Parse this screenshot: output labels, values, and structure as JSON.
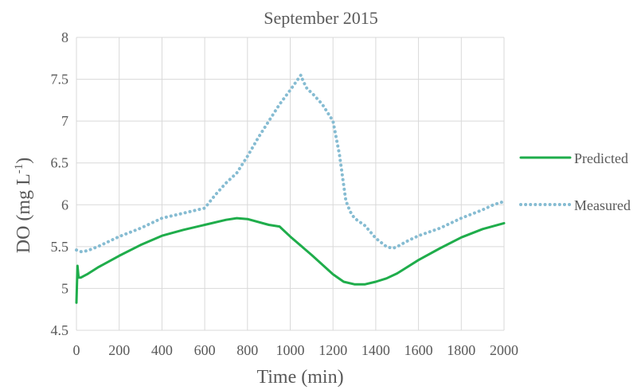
{
  "chart_data": {
    "type": "line",
    "title": "September 2015",
    "xlabel": "Time (min)",
    "ylabel_main": "DO (mg L",
    "ylabel_sup": "-1",
    "ylabel_close": ")",
    "xlim": [
      0,
      2000
    ],
    "ylim": [
      4.5,
      8
    ],
    "xticks": [
      0,
      200,
      400,
      600,
      800,
      1000,
      1200,
      1400,
      1600,
      1800,
      2000
    ],
    "yticks": [
      "4.5",
      "5",
      "5.5",
      "6",
      "6.5",
      "7",
      "7.5",
      "8"
    ],
    "grid": true,
    "legend_position": "right",
    "series": [
      {
        "name": "Predicted",
        "color": "#1fad4b",
        "style": "solid",
        "x": [
          0,
          5,
          10,
          20,
          50,
          100,
          200,
          300,
          400,
          500,
          600,
          700,
          750,
          800,
          900,
          950,
          1000,
          1100,
          1200,
          1250,
          1300,
          1350,
          1400,
          1450,
          1500,
          1600,
          1700,
          1800,
          1900,
          2000
        ],
        "y": [
          4.83,
          5.27,
          5.13,
          5.13,
          5.17,
          5.25,
          5.39,
          5.52,
          5.63,
          5.7,
          5.76,
          5.82,
          5.84,
          5.83,
          5.76,
          5.74,
          5.62,
          5.4,
          5.17,
          5.08,
          5.05,
          5.05,
          5.08,
          5.12,
          5.18,
          5.34,
          5.48,
          5.61,
          5.71,
          5.78
        ]
      },
      {
        "name": "Measured",
        "color": "#86bcd2",
        "style": "dotted",
        "x": [
          0,
          20,
          50,
          100,
          200,
          300,
          400,
          500,
          600,
          650,
          700,
          750,
          800,
          850,
          900,
          950,
          1000,
          1050,
          1060,
          1080,
          1100,
          1150,
          1200,
          1230,
          1260,
          1280,
          1300,
          1350,
          1400,
          1450,
          1480,
          1500,
          1550,
          1600,
          1700,
          1800,
          1900,
          1950,
          2000
        ],
        "y": [
          5.46,
          5.44,
          5.45,
          5.5,
          5.62,
          5.72,
          5.84,
          5.9,
          5.96,
          6.12,
          6.26,
          6.38,
          6.58,
          6.8,
          7.0,
          7.2,
          7.37,
          7.55,
          7.48,
          7.38,
          7.34,
          7.2,
          7.0,
          6.6,
          6.05,
          5.92,
          5.84,
          5.75,
          5.6,
          5.5,
          5.48,
          5.5,
          5.57,
          5.63,
          5.72,
          5.84,
          5.94,
          6.0,
          6.04
        ]
      }
    ]
  }
}
